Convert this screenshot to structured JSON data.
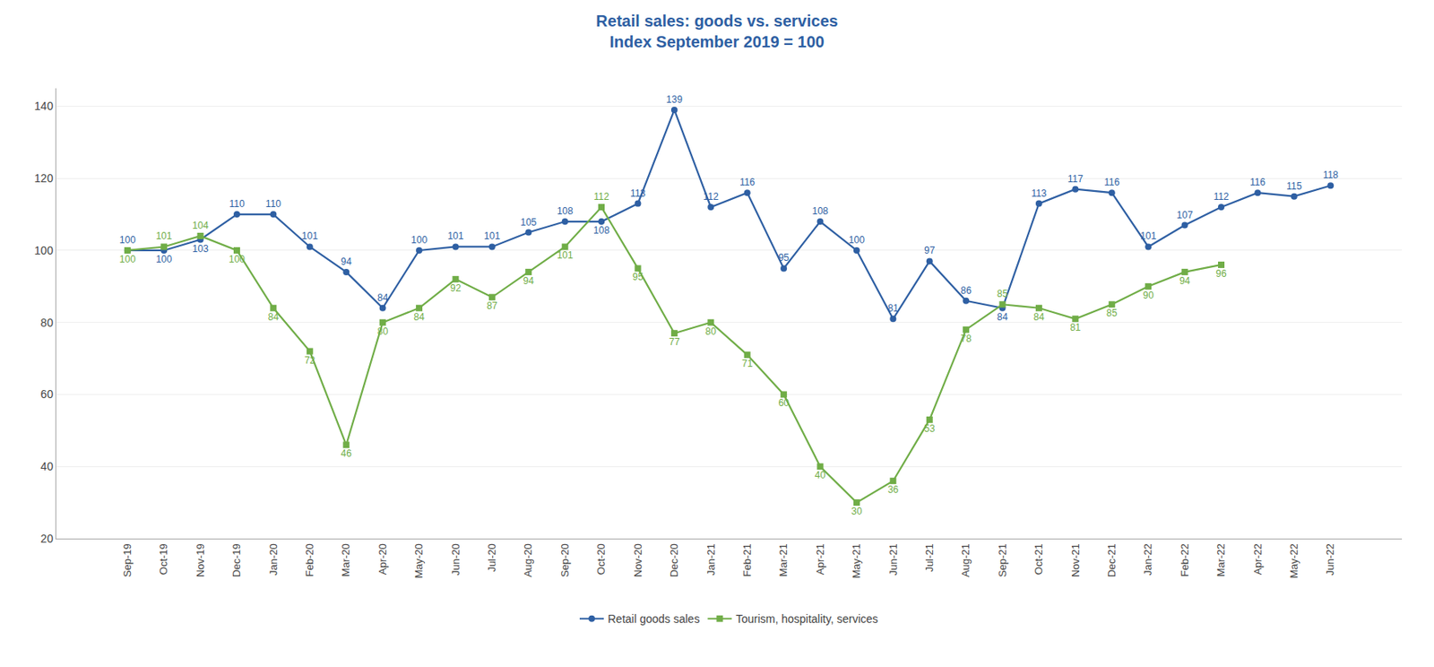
{
  "chart_data": {
    "type": "line",
    "title": "Retail sales: goods vs. services",
    "subtitle": "Index September 2019 = 100",
    "categories": [
      "Sep-19",
      "Oct-19",
      "Nov-19",
      "Dec-19",
      "Jan-20",
      "Feb-20",
      "Mar-20",
      "Apr-20",
      "May-20",
      "Jun-20",
      "Jul-20",
      "Aug-20",
      "Sep-20",
      "Oct-20",
      "Nov-20",
      "Dec-20",
      "Jan-21",
      "Feb-21",
      "Mar-21",
      "Apr-21",
      "May-21",
      "Jun-21",
      "Jul-21",
      "Aug-21",
      "Sep-21",
      "Oct-21",
      "Nov-21",
      "Dec-21",
      "Jan-22",
      "Feb-22",
      "Mar-22",
      "Apr-22",
      "May-22",
      "Jun-22"
    ],
    "series": [
      {
        "name": "Retail goods sales",
        "color": "#2E5FA3",
        "marker": "circle",
        "values": [
          100,
          100,
          103,
          110,
          110,
          101,
          94,
          84,
          100,
          101,
          101,
          105,
          108,
          108,
          113,
          139,
          112,
          116,
          95,
          108,
          100,
          81,
          97,
          86,
          84,
          113,
          117,
          116,
          101,
          107,
          112,
          116,
          115,
          118
        ]
      },
      {
        "name": "Tourism, hospitality, services",
        "color": "#70AD47",
        "marker": "square",
        "values": [
          100,
          101,
          104,
          100,
          84,
          72,
          46,
          80,
          84,
          92,
          87,
          94,
          101,
          112,
          95,
          77,
          80,
          71,
          60,
          40,
          30,
          36,
          53,
          78,
          85,
          84,
          81,
          85,
          90,
          94,
          96,
          null,
          null,
          null
        ]
      }
    ],
    "ylim": [
      20,
      145
    ],
    "yticks": [
      20,
      40,
      60,
      80,
      100,
      120,
      140
    ],
    "grid": true,
    "legend": "bottom",
    "data_labels": true
  }
}
